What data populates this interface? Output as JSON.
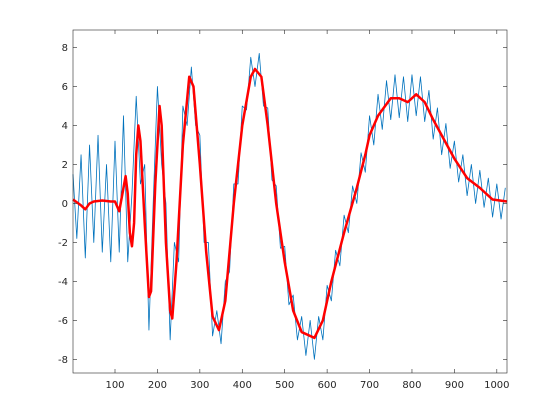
{
  "chart_data": {
    "type": "line",
    "xlim": [
      1,
      1024
    ],
    "xticks": [
      100,
      200,
      300,
      400,
      500,
      600,
      700,
      800,
      900,
      1000
    ],
    "ylim": [
      -8.7,
      8.9
    ],
    "yticks": [
      -8,
      -6,
      -4,
      -2,
      0,
      2,
      4,
      6,
      8
    ],
    "grid": false,
    "series": [
      {
        "color": "#0072bd",
        "x": [
          1,
          10,
          20,
          30,
          40,
          50,
          60,
          70,
          80,
          90,
          100,
          110,
          120,
          130,
          140,
          150,
          160,
          170,
          180,
          190,
          200,
          210,
          220,
          230,
          240,
          250,
          260,
          270,
          280,
          290,
          300,
          310,
          320,
          330,
          340,
          350,
          360,
          370,
          380,
          390,
          400,
          410,
          420,
          430,
          440,
          450,
          460,
          470,
          480,
          490,
          500,
          510,
          520,
          530,
          540,
          550,
          560,
          570,
          580,
          590,
          600,
          610,
          620,
          630,
          640,
          650,
          660,
          670,
          680,
          690,
          700,
          710,
          720,
          730,
          740,
          750,
          760,
          770,
          780,
          790,
          800,
          810,
          820,
          830,
          840,
          850,
          860,
          870,
          880,
          890,
          900,
          910,
          920,
          930,
          940,
          950,
          960,
          970,
          980,
          990,
          1000,
          1010,
          1020
        ],
        "values": [
          1.5,
          -1.8,
          2.5,
          -2.8,
          3,
          -2,
          3.5,
          -2.5,
          2,
          -3,
          3.2,
          -2.5,
          4.5,
          -3,
          0.5,
          5.5,
          1,
          2,
          -6.5,
          0,
          6,
          2,
          0,
          -7,
          -2,
          -3,
          5,
          4,
          7,
          4,
          3.5,
          -2,
          -2,
          -6.8,
          -5.5,
          -7.2,
          -4,
          -3.5,
          1,
          1,
          5,
          4.8,
          7.5,
          6,
          7.7,
          5,
          4.9,
          1.2,
          0.9,
          -2.3,
          -2.2,
          -5.2,
          -4.7,
          -7,
          -5.8,
          -7.8,
          -6,
          -8,
          -5.8,
          -7,
          -4.2,
          -5,
          -2.4,
          -3.2,
          -0.6,
          -1.5,
          0.9,
          0,
          2.6,
          1.6,
          4.5,
          3,
          5.6,
          3.8,
          6.3,
          4.3,
          6.6,
          4.4,
          6.5,
          4.2,
          6.6,
          4.5,
          6.5,
          4.2,
          5.8,
          3.3,
          4.9,
          2.5,
          4.1,
          1.8,
          3.2,
          1.1,
          2.5,
          0.4,
          2,
          0,
          1.7,
          -0.2,
          1.3,
          -0.7,
          1,
          -0.8,
          0.8
        ]
      },
      {
        "color": "#ff0000",
        "x": [
          1,
          20,
          30,
          40,
          50,
          70,
          90,
          100,
          110,
          120,
          125,
          130,
          135,
          140,
          145,
          150,
          155,
          160,
          170,
          180,
          185,
          195,
          205,
          210,
          220,
          230,
          235,
          245,
          260,
          275,
          285,
          300,
          315,
          330,
          345,
          360,
          380,
          400,
          420,
          430,
          445,
          460,
          480,
          500,
          520,
          540,
          570,
          590,
          610,
          640,
          670,
          690,
          700,
          720,
          750,
          770,
          790,
          810,
          830,
          850,
          870,
          900,
          930,
          960,
          990,
          1024
        ],
        "values": [
          0.2,
          -0.1,
          -0.3,
          0,
          0.1,
          0.15,
          0.1,
          0.1,
          -0.4,
          0.8,
          1.4,
          0.5,
          -1.5,
          -2.2,
          -1,
          2.5,
          4,
          3.2,
          -1,
          -4.8,
          -4.5,
          1,
          5,
          4,
          -2,
          -5.5,
          -5.9,
          -3,
          3,
          6.5,
          6,
          2,
          -2.5,
          -5.8,
          -6.5,
          -5,
          0,
          4,
          6.5,
          6.9,
          6.5,
          4,
          0,
          -3,
          -5.5,
          -6.6,
          -6.9,
          -6,
          -4,
          -1.5,
          0.8,
          2.5,
          3.5,
          4.5,
          5.4,
          5.4,
          5.2,
          5.6,
          5.2,
          4.3,
          3.5,
          2.3,
          1.3,
          0.8,
          0.2,
          0.1
        ]
      }
    ]
  }
}
